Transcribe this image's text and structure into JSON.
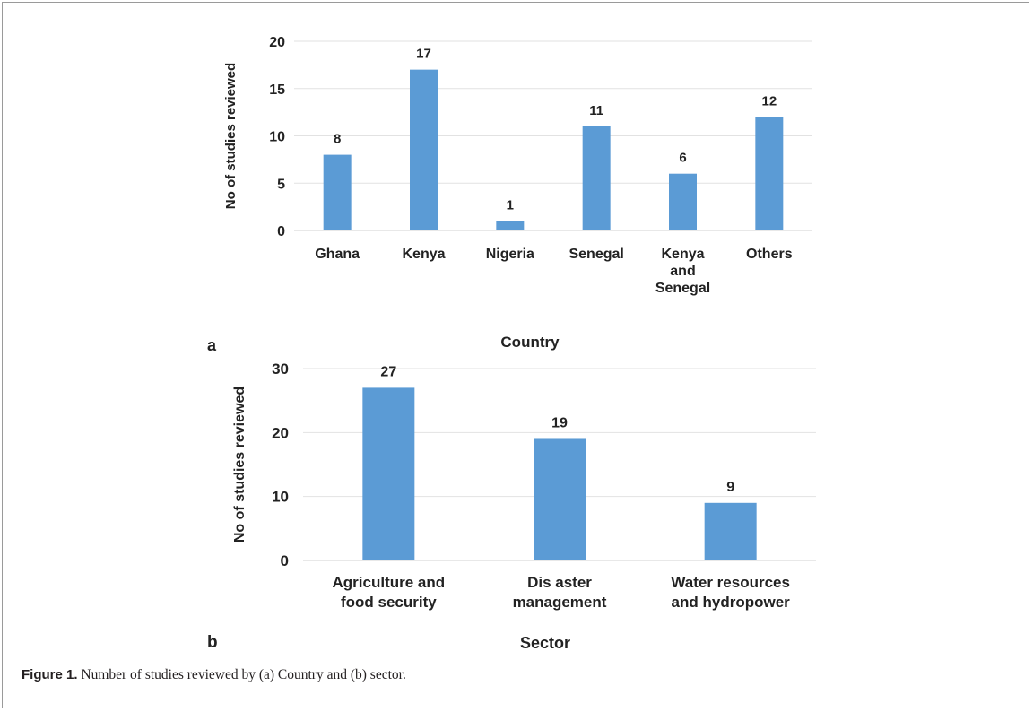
{
  "chart_data": [
    {
      "type": "bar",
      "panel_label": "a",
      "categories": [
        [
          "Ghana"
        ],
        [
          "Kenya"
        ],
        [
          "Nigeria"
        ],
        [
          "Senegal"
        ],
        [
          "Kenya",
          "and",
          "Senegal"
        ],
        [
          "Others"
        ]
      ],
      "values": [
        8,
        17,
        1,
        11,
        6,
        12
      ],
      "data_labels": [
        "8",
        "17",
        "1",
        "11",
        "6",
        "12"
      ],
      "title": "",
      "xlabel": "Country",
      "ylabel": "No of studies reviewed",
      "ylim": [
        0,
        20
      ],
      "yticks": [
        0,
        5,
        10,
        15,
        20
      ],
      "ytick_labels": [
        "0",
        "5",
        "10",
        "15",
        "20"
      ],
      "grid": true,
      "bar_color": "#5b9bd5"
    },
    {
      "type": "bar",
      "panel_label": "b",
      "categories": [
        [
          "Agriculture and",
          "food security"
        ],
        [
          "Dis aster",
          "management"
        ],
        [
          "Water resources",
          "and hydropower"
        ]
      ],
      "values": [
        27,
        19,
        9
      ],
      "data_labels": [
        "27",
        "19",
        "9"
      ],
      "title": "",
      "xlabel": "Sector",
      "ylabel": "No of studies reviewed",
      "ylim": [
        0,
        30
      ],
      "yticks": [
        0,
        10,
        20,
        30
      ],
      "ytick_labels": [
        "0",
        "10",
        "20",
        "30"
      ],
      "grid": true,
      "bar_color": "#5b9bd5"
    }
  ],
  "caption": {
    "label": "Figure 1.",
    "text": " Number of studies reviewed by (a) Country and (b) sector."
  }
}
